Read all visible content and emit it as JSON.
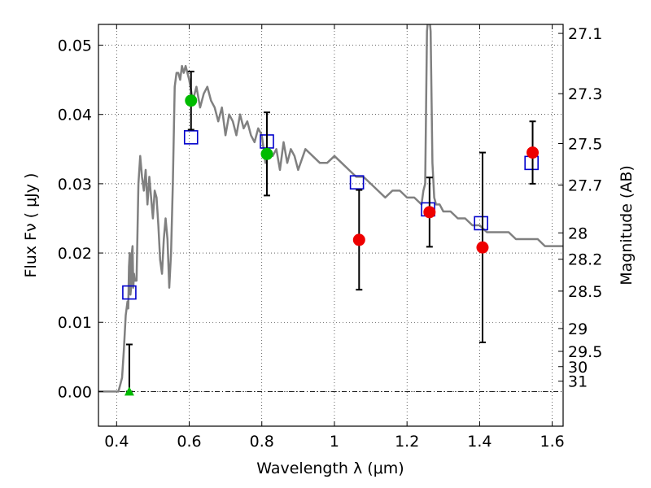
{
  "chart_data": {
    "type": "scatter",
    "xlabel": "Wavelength  λ (μm)",
    "ylabel": "Flux  Fν  ( μJy )",
    "y2label": "Magnitude (AB)",
    "xlim": [
      0.35,
      1.63
    ],
    "ylim": [
      -0.005,
      0.053
    ],
    "grid": true,
    "x_ticks": [
      {
        "v": 0.4,
        "label": "0.4"
      },
      {
        "v": 0.6,
        "label": "0.6"
      },
      {
        "v": 0.8,
        "label": "0.8"
      },
      {
        "v": 1.0,
        "label": "1"
      },
      {
        "v": 1.2,
        "label": "1.2"
      },
      {
        "v": 1.4,
        "label": "1.4"
      },
      {
        "v": 1.6,
        "label": "1.6"
      }
    ],
    "y_ticks": [
      {
        "v": 0.0,
        "label": "0.00"
      },
      {
        "v": 0.01,
        "label": "0.01"
      },
      {
        "v": 0.02,
        "label": "0.02"
      },
      {
        "v": 0.03,
        "label": "0.03"
      },
      {
        "v": 0.04,
        "label": "0.04"
      },
      {
        "v": 0.05,
        "label": "0.05"
      }
    ],
    "mag_ticks": [
      {
        "label": "27.1",
        "flux": 0.0517
      },
      {
        "label": "27.3",
        "flux": 0.043
      },
      {
        "label": "27.5",
        "flux": 0.0358
      },
      {
        "label": "27.7",
        "flux": 0.0298
      },
      {
        "label": "28",
        "flux": 0.0229
      },
      {
        "label": "28.2",
        "flux": 0.0191
      },
      {
        "label": "28.5",
        "flux": 0.0145
      },
      {
        "label": "29",
        "flux": 0.0091
      },
      {
        "label": "29.5",
        "flux": 0.0058
      },
      {
        "label": "30",
        "flux": 0.0036
      },
      {
        "label": "31",
        "flux": 0.0015
      }
    ],
    "model_spectrum": {
      "color": "#808080",
      "x": [
        0.35,
        0.4,
        0.405,
        0.41,
        0.415,
        0.42,
        0.425,
        0.43,
        0.432,
        0.434,
        0.436,
        0.438,
        0.44,
        0.442,
        0.444,
        0.446,
        0.448,
        0.45,
        0.455,
        0.46,
        0.465,
        0.47,
        0.475,
        0.48,
        0.485,
        0.49,
        0.495,
        0.5,
        0.505,
        0.51,
        0.515,
        0.52,
        0.525,
        0.53,
        0.535,
        0.54,
        0.545,
        0.55,
        0.555,
        0.56,
        0.565,
        0.57,
        0.575,
        0.58,
        0.585,
        0.59,
        0.6,
        0.61,
        0.62,
        0.63,
        0.64,
        0.65,
        0.66,
        0.67,
        0.68,
        0.69,
        0.7,
        0.71,
        0.72,
        0.73,
        0.74,
        0.75,
        0.76,
        0.77,
        0.78,
        0.79,
        0.8,
        0.81,
        0.82,
        0.83,
        0.84,
        0.85,
        0.86,
        0.87,
        0.88,
        0.89,
        0.9,
        0.92,
        0.94,
        0.96,
        0.98,
        1.0,
        1.02,
        1.04,
        1.06,
        1.08,
        1.1,
        1.12,
        1.14,
        1.16,
        1.18,
        1.2,
        1.22,
        1.24,
        1.245,
        1.25,
        1.255,
        1.26,
        1.265,
        1.27,
        1.275,
        1.28,
        1.29,
        1.3,
        1.32,
        1.34,
        1.36,
        1.38,
        1.4,
        1.42,
        1.44,
        1.46,
        1.48,
        1.5,
        1.52,
        1.54,
        1.56,
        1.58,
        1.6,
        1.63
      ],
      "y": [
        0.0,
        0.0,
        0.0,
        0.001,
        0.002,
        0.006,
        0.011,
        0.013,
        0.012,
        0.018,
        0.02,
        0.014,
        0.015,
        0.02,
        0.021,
        0.015,
        0.017,
        0.016,
        0.016,
        0.03,
        0.034,
        0.031,
        0.029,
        0.032,
        0.027,
        0.031,
        0.028,
        0.025,
        0.029,
        0.028,
        0.024,
        0.019,
        0.017,
        0.022,
        0.025,
        0.022,
        0.015,
        0.02,
        0.03,
        0.044,
        0.046,
        0.046,
        0.045,
        0.047,
        0.046,
        0.047,
        0.045,
        0.042,
        0.044,
        0.041,
        0.043,
        0.044,
        0.042,
        0.041,
        0.039,
        0.041,
        0.037,
        0.04,
        0.039,
        0.037,
        0.04,
        0.038,
        0.039,
        0.037,
        0.036,
        0.038,
        0.037,
        0.033,
        0.035,
        0.034,
        0.035,
        0.032,
        0.036,
        0.033,
        0.035,
        0.034,
        0.032,
        0.035,
        0.034,
        0.033,
        0.033,
        0.034,
        0.033,
        0.032,
        0.031,
        0.031,
        0.03,
        0.029,
        0.028,
        0.029,
        0.029,
        0.028,
        0.028,
        0.027,
        0.029,
        0.03,
        0.052,
        0.055,
        0.052,
        0.033,
        0.028,
        0.027,
        0.027,
        0.026,
        0.026,
        0.025,
        0.025,
        0.024,
        0.024,
        0.023,
        0.023,
        0.023,
        0.023,
        0.022,
        0.022,
        0.022,
        0.022,
        0.021,
        0.021,
        0.021
      ]
    },
    "model_photometry": {
      "marker": "open-square",
      "color": "#0000cc",
      "points": [
        {
          "x": 0.435,
          "y": 0.0143
        },
        {
          "x": 0.605,
          "y": 0.0367
        },
        {
          "x": 0.814,
          "y": 0.0361
        },
        {
          "x": 1.062,
          "y": 0.0302
        },
        {
          "x": 1.258,
          "y": 0.0263
        },
        {
          "x": 1.404,
          "y": 0.0243
        },
        {
          "x": 1.543,
          "y": 0.033
        }
      ]
    },
    "observed_optical": {
      "marker": "filled-circle",
      "color": "#00bb00",
      "points": [
        {
          "x": 0.605,
          "y": 0.042,
          "err": 0.0042
        },
        {
          "x": 0.814,
          "y": 0.0343,
          "err": 0.006
        }
      ]
    },
    "observed_nir": {
      "marker": "filled-circle",
      "color": "#ee0000",
      "points": [
        {
          "x": 1.068,
          "y": 0.0219,
          "err": 0.0072
        },
        {
          "x": 1.262,
          "y": 0.0259,
          "err": 0.005
        },
        {
          "x": 1.408,
          "y": 0.0208,
          "err": 0.0137
        },
        {
          "x": 1.546,
          "y": 0.0345,
          "err": 0.0045
        }
      ]
    },
    "upper_limit": {
      "marker": "filled-triangle",
      "color": "#00bb00",
      "points": [
        {
          "x": 0.435,
          "y": 0.0,
          "err_hi": 0.0068
        }
      ]
    },
    "zero_line": {
      "y": 0.0,
      "style": "dash-dot"
    }
  }
}
